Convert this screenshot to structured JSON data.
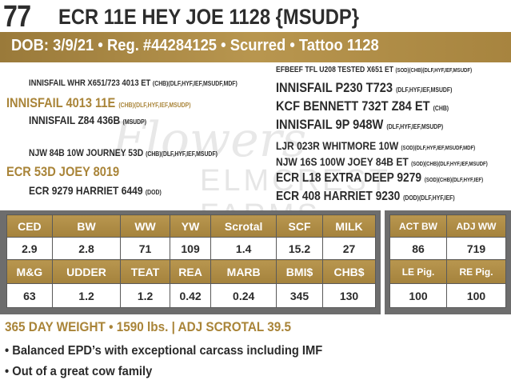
{
  "header": {
    "lot_number": "77",
    "title": "ECR 11E HEY JOE 1128 {MSUDP}",
    "info_bar": "DOB: 3/9/21 • Reg. #44284125 • Scurred • Tattoo 1128"
  },
  "pedigree": {
    "sire_side": [
      {
        "name": "INNISFAIL WHR X651/723 4013 ET",
        "tags": "(CHB)(DLF,HYF,IEF,MSUDF,MDF)"
      },
      {
        "name": "INNISFAIL 4013 11E",
        "tags": "(CHB)(DLF,HYF,IEF,MSUDP)"
      },
      {
        "name": "INNISFAIL Z84 436B",
        "tags": "(MSUDP)"
      },
      {
        "name": "NJW 84B 10W JOURNEY 53D",
        "tags": "(CHB)(DLF,HYF,IEF,MSUDF)"
      },
      {
        "name": "ECR 53D JOEY 8019",
        "tags": ""
      },
      {
        "name": "ECR 9279 HARRIET 6449",
        "tags": "(DOD)"
      }
    ],
    "dam_side": [
      {
        "name": "EFBEEF TFL U208 TESTED X651 ET",
        "tags": "(SOD)(CHB)(DLF,HYF,IEF,MSUDF)"
      },
      {
        "name": "INNISFAIL P230 T723",
        "tags": "(DLF,HYF,IEF,MSUDF)"
      },
      {
        "name": "KCF BENNETT 732T Z84 ET",
        "tags": "(CHB)"
      },
      {
        "name": "INNISFAIL 9P 948W",
        "tags": "(DLF,HYF,IEF,MSUDP)"
      },
      {
        "name": "LJR 023R WHITMORE 10W",
        "tags": "(SOD)(DLF,HYF,IEF,MSUDF,MDF)"
      },
      {
        "name": "NJW 16S 100W JOEY 84B ET",
        "tags": "(SOD)(CHB)(DLF,HYF,IEF,MSUDF)"
      },
      {
        "name": "ECR L18 EXTRA DEEP 9279",
        "tags": "(SOD)(CHB)(DLF,HYF,IEF)"
      },
      {
        "name": "ECR 408 HARRIET 9230",
        "tags": "(DOD)(DLF,HYF,IEF)"
      }
    ]
  },
  "watermark": {
    "script": "Flowers",
    "text": "ELMCREST FARMS"
  },
  "epd_table": {
    "row1_headers": [
      "CED",
      "BW",
      "WW",
      "YW",
      "Scrotal",
      "SCF",
      "MILK"
    ],
    "row1_values": [
      "2.9",
      "2.8",
      "71",
      "109",
      "1.4",
      "15.2",
      "27"
    ],
    "row2_headers": [
      "M&G",
      "UDDER",
      "TEAT",
      "REA",
      "MARB",
      "BMI$",
      "CHB$"
    ],
    "row2_values": [
      "63",
      "1.2",
      "1.2",
      "0.42",
      "0.24",
      "345",
      "130"
    ]
  },
  "actual_table": {
    "row1_headers": [
      "ACT BW",
      "ADJ WW"
    ],
    "row1_values": [
      "86",
      "719"
    ],
    "row2_headers": [
      "LE Pig.",
      "RE Pig."
    ],
    "row2_values": [
      "100",
      "100"
    ]
  },
  "summary": {
    "weight_line": "365 DAY WEIGHT • 1590 lbs. | ADJ SCROTAL 39.5",
    "bullets": [
      "• Balanced EPD’s with exceptional carcass including IMF",
      "• Out of a great cow family"
    ]
  },
  "colors": {
    "gold": "#a98438",
    "text": "#2b2b2b",
    "white": "#ffffff"
  }
}
